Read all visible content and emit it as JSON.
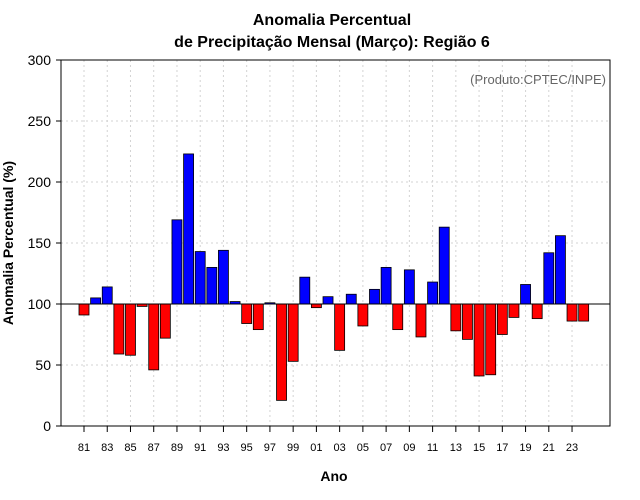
{
  "colors": {
    "positive": "#0000ff",
    "negative": "#ff0000",
    "grid": "#d3d3d3",
    "baseline": "#000000"
  },
  "chart_data": {
    "type": "bar",
    "title_line1": "Anomalia Percentual",
    "title_line2": "de Precipitação Mensal (Março): Região 6",
    "xlabel": "Ano",
    "ylabel": "Anomalia Percentual (%)",
    "credit": "(Produto:CPTEC/INPE)",
    "ylim": [
      0,
      300
    ],
    "yticks": [
      0,
      50,
      100,
      150,
      200,
      250,
      300
    ],
    "baseline": 100,
    "grid": true,
    "categories": [
      "1981",
      "1982",
      "1983",
      "1984",
      "1985",
      "1986",
      "1987",
      "1988",
      "1989",
      "1990",
      "1991",
      "1992",
      "1993",
      "1994",
      "1995",
      "1996",
      "1997",
      "1998",
      "1999",
      "2000",
      "2001",
      "2002",
      "2003",
      "2004",
      "2005",
      "2006",
      "2007",
      "2008",
      "2009",
      "2010",
      "2011",
      "2012",
      "2013",
      "2014",
      "2015",
      "2016",
      "2017",
      "2018",
      "2019",
      "2020",
      "2021",
      "2022",
      "2023",
      "2024"
    ],
    "xtick_labels": [
      "81",
      "83",
      "85",
      "87",
      "89",
      "91",
      "93",
      "95",
      "97",
      "99",
      "01",
      "03",
      "05",
      "07",
      "09",
      "11",
      "13",
      "15",
      "17",
      "19",
      "21",
      "23"
    ],
    "values": [
      91,
      105,
      114,
      59,
      58,
      98,
      46,
      72,
      169,
      223,
      143,
      130,
      144,
      102,
      84,
      79,
      101,
      21,
      53,
      122,
      97,
      106,
      62,
      108,
      82,
      112,
      130,
      79,
      128,
      73,
      118,
      163,
      78,
      71,
      41,
      42,
      75,
      89,
      116,
      88,
      142,
      156,
      86,
      86
    ]
  }
}
